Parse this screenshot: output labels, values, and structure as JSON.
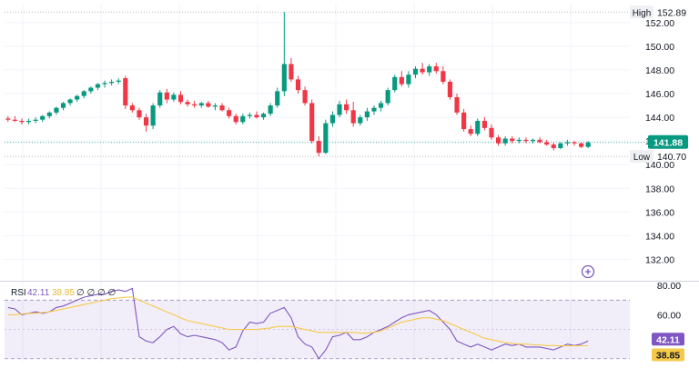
{
  "chart_data": [
    {
      "type": "candlestick",
      "title": "",
      "ylim": [
        130.5,
        153.6
      ],
      "y_ticks": [
        "152.00",
        "150.00",
        "148.00",
        "146.00",
        "144.00",
        "142.00",
        "140.00",
        "138.00",
        "136.00",
        "134.00",
        "132.00"
      ],
      "grid": true,
      "colors": {
        "up": "#089981",
        "down": "#f23645"
      },
      "last_price": {
        "label": "141.88",
        "value": 141.88,
        "color": "#089981"
      },
      "high_marker": {
        "label": "High",
        "value_label": "152.89",
        "value": 152.89
      },
      "low_marker": {
        "label": "Low",
        "value_label": "140.70",
        "value": 140.7
      },
      "candles": [
        [
          143.9,
          144.1,
          143.6,
          143.8
        ],
        [
          143.8,
          144.1,
          143.6,
          143.7
        ],
        [
          143.7,
          143.9,
          143.4,
          143.6
        ],
        [
          143.6,
          143.9,
          143.4,
          143.7
        ],
        [
          143.7,
          144.0,
          143.5,
          143.8
        ],
        [
          143.8,
          144.2,
          143.6,
          144.1
        ],
        [
          144.1,
          144.5,
          143.9,
          144.4
        ],
        [
          144.4,
          144.9,
          144.2,
          144.8
        ],
        [
          144.8,
          145.3,
          144.6,
          145.2
        ],
        [
          145.2,
          145.6,
          145.0,
          145.5
        ],
        [
          145.5,
          145.9,
          145.3,
          145.8
        ],
        [
          145.8,
          146.3,
          145.6,
          146.2
        ],
        [
          146.2,
          146.6,
          146.0,
          146.5
        ],
        [
          146.5,
          146.9,
          146.3,
          146.8
        ],
        [
          146.8,
          147.1,
          146.5,
          146.9
        ],
        [
          146.9,
          147.2,
          146.7,
          147.0
        ],
        [
          147.0,
          147.3,
          146.8,
          147.1
        ],
        [
          147.3,
          147.5,
          144.7,
          145.0
        ],
        [
          145.0,
          145.2,
          144.4,
          144.6
        ],
        [
          144.6,
          144.8,
          143.8,
          144.0
        ],
        [
          144.0,
          144.3,
          142.8,
          143.3
        ],
        [
          143.3,
          145.2,
          143.0,
          145.0
        ],
        [
          145.0,
          146.3,
          144.8,
          146.1
        ],
        [
          146.1,
          146.4,
          145.2,
          145.5
        ],
        [
          145.5,
          146.1,
          145.3,
          145.9
        ],
        [
          145.9,
          146.2,
          145.1,
          145.3
        ],
        [
          145.3,
          145.5,
          144.9,
          145.1
        ],
        [
          145.1,
          145.4,
          144.8,
          145.0
        ],
        [
          145.0,
          145.3,
          144.8,
          145.2
        ],
        [
          145.2,
          145.4,
          144.8,
          144.9
        ],
        [
          144.9,
          145.2,
          144.6,
          145.0
        ],
        [
          145.0,
          145.2,
          144.5,
          144.6
        ],
        [
          144.6,
          144.8,
          143.9,
          144.1
        ],
        [
          144.1,
          144.3,
          143.4,
          143.6
        ],
        [
          143.6,
          144.3,
          143.4,
          144.1
        ],
        [
          144.1,
          144.4,
          143.9,
          144.2
        ],
        [
          144.2,
          144.5,
          143.9,
          144.0
        ],
        [
          144.0,
          144.4,
          143.8,
          144.3
        ],
        [
          144.3,
          145.2,
          144.1,
          145.0
        ],
        [
          145.0,
          146.5,
          144.8,
          146.2
        ],
        [
          146.2,
          152.89,
          145.8,
          148.5
        ],
        [
          148.5,
          149.0,
          147.0,
          147.2
        ],
        [
          147.2,
          147.5,
          146.0,
          146.3
        ],
        [
          146.3,
          146.6,
          145.0,
          145.2
        ],
        [
          145.2,
          145.5,
          141.8,
          142.0
        ],
        [
          142.0,
          142.4,
          140.7,
          141.0
        ],
        [
          141.0,
          143.8,
          140.9,
          143.5
        ],
        [
          143.5,
          144.5,
          143.2,
          144.2
        ],
        [
          144.2,
          145.4,
          144.0,
          145.1
        ],
        [
          145.1,
          145.5,
          144.3,
          144.6
        ],
        [
          144.6,
          145.3,
          143.2,
          143.5
        ],
        [
          143.5,
          144.2,
          143.3,
          144.0
        ],
        [
          144.0,
          144.8,
          143.7,
          144.5
        ],
        [
          144.5,
          145.0,
          144.2,
          144.8
        ],
        [
          144.8,
          145.4,
          144.5,
          145.2
        ],
        [
          145.2,
          146.5,
          145.0,
          146.3
        ],
        [
          146.3,
          147.6,
          146.1,
          147.4
        ],
        [
          147.4,
          147.9,
          146.6,
          146.8
        ],
        [
          146.8,
          147.9,
          146.5,
          147.6
        ],
        [
          147.6,
          148.3,
          147.3,
          148.1
        ],
        [
          148.1,
          148.6,
          147.6,
          147.8
        ],
        [
          147.8,
          148.5,
          147.5,
          148.3
        ],
        [
          148.3,
          148.6,
          147.7,
          147.9
        ],
        [
          147.9,
          148.3,
          146.8,
          147.0
        ],
        [
          147.0,
          147.2,
          145.5,
          145.7
        ],
        [
          145.7,
          146.0,
          144.2,
          144.4
        ],
        [
          144.4,
          144.7,
          142.8,
          143.0
        ],
        [
          143.0,
          143.3,
          142.4,
          142.6
        ],
        [
          142.6,
          143.9,
          142.4,
          143.7
        ],
        [
          143.7,
          144.0,
          142.9,
          143.1
        ],
        [
          143.1,
          143.4,
          142.1,
          142.3
        ],
        [
          142.3,
          142.5,
          141.6,
          141.8
        ],
        [
          141.8,
          142.4,
          141.6,
          142.2
        ],
        [
          142.2,
          142.4,
          141.8,
          142.0
        ],
        [
          142.0,
          142.3,
          141.8,
          142.1
        ],
        [
          142.1,
          142.3,
          141.8,
          142.0
        ],
        [
          142.0,
          142.2,
          141.8,
          142.1
        ],
        [
          142.1,
          142.3,
          141.8,
          141.9
        ],
        [
          141.9,
          142.1,
          141.6,
          141.7
        ],
        [
          141.7,
          141.9,
          141.2,
          141.4
        ],
        [
          141.4,
          141.9,
          141.3,
          141.8
        ],
        [
          141.8,
          142.1,
          141.6,
          141.9
        ],
        [
          141.9,
          142.0,
          141.6,
          141.8
        ],
        [
          141.8,
          141.9,
          141.4,
          141.5
        ],
        [
          141.5,
          142.0,
          141.4,
          141.88
        ]
      ]
    },
    {
      "type": "line",
      "title": "RSI",
      "legend": {
        "name": "RSI",
        "value": "42.11",
        "ma_value": "38.85",
        "extra": "∅ ∅ ∅ ∅"
      },
      "ylim": [
        28,
        82
      ],
      "y_ticks": [
        "80.00",
        "60.00"
      ],
      "band": [
        30,
        70
      ],
      "grid": true,
      "series": [
        {
          "name": "RSI",
          "color": "#7e57c2",
          "last_label": "42.11",
          "values": [
            65,
            64,
            60,
            61,
            62,
            61,
            62,
            65,
            66,
            68,
            70,
            72,
            73,
            74,
            74,
            76,
            77,
            76,
            78,
            45,
            42,
            41,
            45,
            50,
            52,
            47,
            45,
            46,
            45,
            44,
            43,
            41,
            36,
            38,
            49,
            55,
            54,
            55,
            61,
            63,
            65,
            58,
            45,
            40,
            38,
            30,
            36,
            45,
            46,
            48,
            43,
            43,
            45,
            48,
            50,
            52,
            55,
            58,
            60,
            61,
            62,
            63,
            60,
            55,
            50,
            42,
            40,
            38,
            40,
            38,
            36,
            38,
            40,
            39,
            40,
            38,
            38,
            38,
            37,
            36,
            38,
            40,
            39,
            40,
            42.11
          ]
        },
        {
          "name": "",
          "color": "#f7c948",
          "last_label": "38.85",
          "values": [
            60,
            60,
            60.5,
            61,
            61,
            61.5,
            62,
            63,
            64,
            65,
            66,
            67,
            68,
            69,
            70,
            71,
            71.5,
            72,
            72,
            70,
            68,
            66,
            64,
            62,
            60,
            58,
            56,
            55,
            54,
            53,
            52,
            51,
            50,
            50,
            50,
            50,
            50,
            50.5,
            51,
            52,
            52,
            52,
            51,
            50,
            49,
            48,
            48,
            48,
            48,
            48,
            48,
            47.5,
            47.5,
            48,
            49,
            51,
            53,
            55,
            56,
            57,
            58,
            58,
            57,
            56,
            54,
            52,
            50,
            48,
            46,
            44,
            43,
            42,
            41,
            40.5,
            40,
            40,
            39.5,
            39.5,
            39,
            39,
            38.8,
            38.8,
            38.8,
            38.85,
            38.85
          ]
        }
      ]
    }
  ]
}
